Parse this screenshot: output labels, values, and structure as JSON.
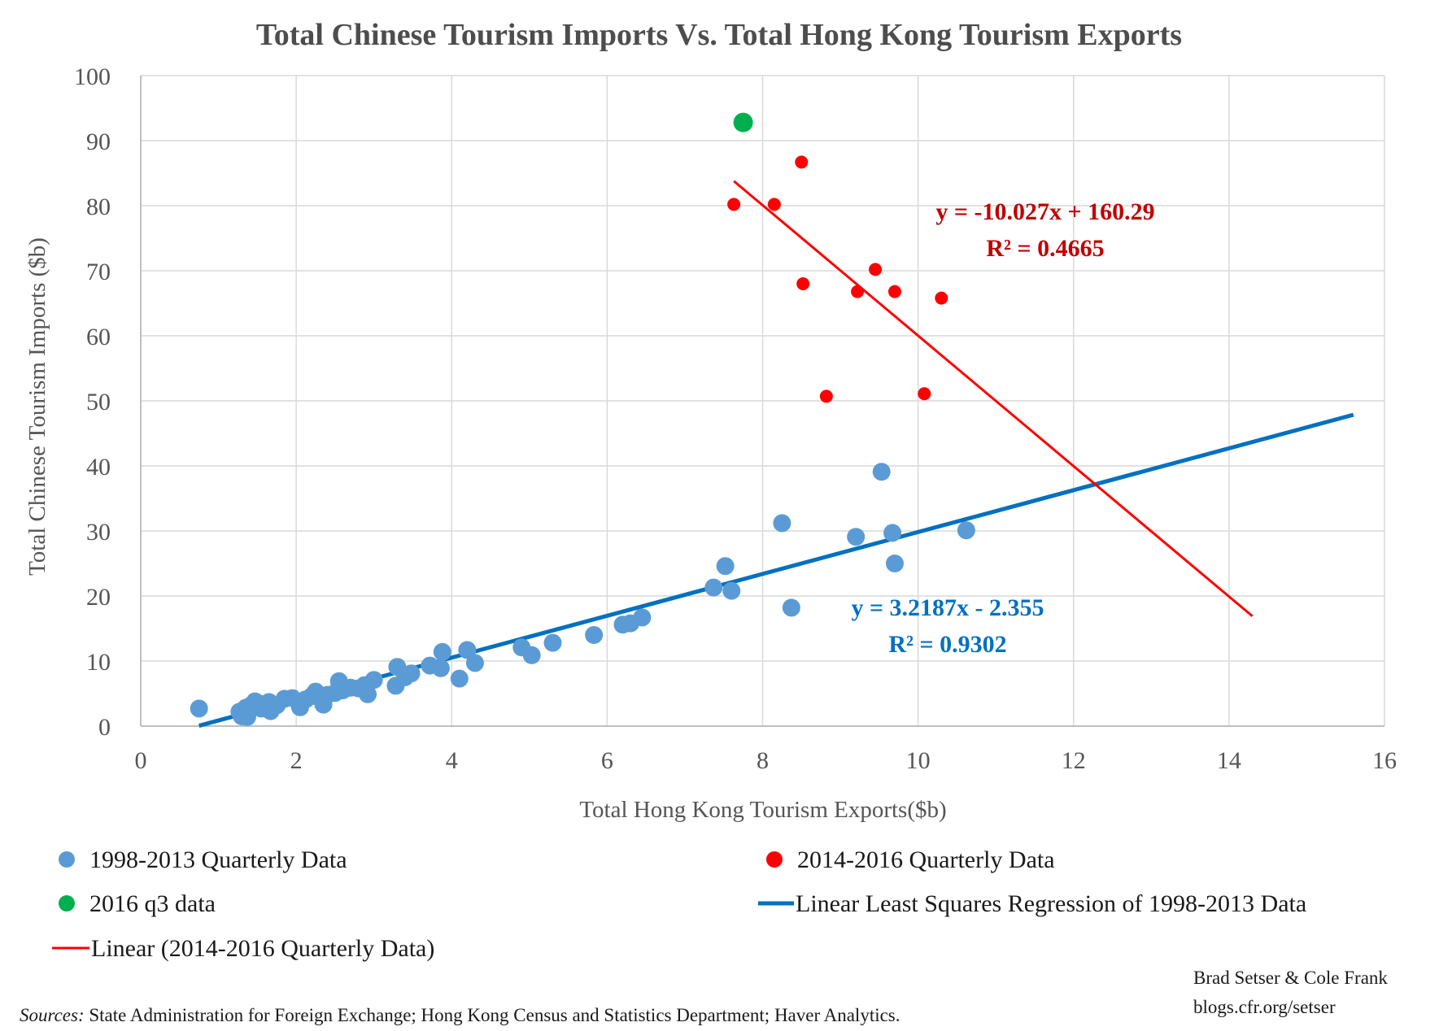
{
  "chart_data": {
    "type": "scatter",
    "title": "Total Chinese Tourism Imports Vs. Total Hong Kong Tourism Exports",
    "xlabel": "Total Hong Kong Tourism Exports($b)",
    "ylabel": "Total Chinese Tourism Imports ($b)",
    "xlim": [
      0,
      16
    ],
    "ylim": [
      0,
      100
    ],
    "xticks": [
      0,
      2,
      4,
      6,
      8,
      10,
      12,
      14,
      16
    ],
    "yticks": [
      0,
      10,
      20,
      30,
      40,
      50,
      60,
      70,
      80,
      90,
      100
    ],
    "grid": true,
    "legend_position": "bottom",
    "series": [
      {
        "name": "1998-2013 Quarterly Data",
        "color": "#5b9bd5",
        "points": [
          [
            0.75,
            2.7
          ],
          [
            1.27,
            2.2
          ],
          [
            1.3,
            1.5
          ],
          [
            1.35,
            2.8
          ],
          [
            1.37,
            1.4
          ],
          [
            1.42,
            3.2
          ],
          [
            1.47,
            3.8
          ],
          [
            1.52,
            3.5
          ],
          [
            1.55,
            2.7
          ],
          [
            1.6,
            3.1
          ],
          [
            1.65,
            3.7
          ],
          [
            1.67,
            2.3
          ],
          [
            1.75,
            3.2
          ],
          [
            1.85,
            4.2
          ],
          [
            1.95,
            4.3
          ],
          [
            2.05,
            2.9
          ],
          [
            2.12,
            4.1
          ],
          [
            2.2,
            4.6
          ],
          [
            2.25,
            5.3
          ],
          [
            2.35,
            3.3
          ],
          [
            2.4,
            4.8
          ],
          [
            2.5,
            5.1
          ],
          [
            2.55,
            6.9
          ],
          [
            2.6,
            5.5
          ],
          [
            2.7,
            5.9
          ],
          [
            2.8,
            5.8
          ],
          [
            2.88,
            6.3
          ],
          [
            2.92,
            4.9
          ],
          [
            3.0,
            7.1
          ],
          [
            3.28,
            6.2
          ],
          [
            3.3,
            9.1
          ],
          [
            3.4,
            7.5
          ],
          [
            3.48,
            8.1
          ],
          [
            3.72,
            9.3
          ],
          [
            3.86,
            8.9
          ],
          [
            3.88,
            11.4
          ],
          [
            4.1,
            7.3
          ],
          [
            4.2,
            11.7
          ],
          [
            4.3,
            9.7
          ],
          [
            4.9,
            12.1
          ],
          [
            5.03,
            10.9
          ],
          [
            5.3,
            12.8
          ],
          [
            5.83,
            14.0
          ],
          [
            6.2,
            15.6
          ],
          [
            6.3,
            15.8
          ],
          [
            6.45,
            16.7
          ],
          [
            7.37,
            21.3
          ],
          [
            7.52,
            24.6
          ],
          [
            7.6,
            20.8
          ],
          [
            8.25,
            31.2
          ],
          [
            8.37,
            18.2
          ],
          [
            9.2,
            29.1
          ],
          [
            9.53,
            39.1
          ],
          [
            9.67,
            29.7
          ],
          [
            9.7,
            25.0
          ],
          [
            10.62,
            30.1
          ]
        ]
      },
      {
        "name": "2014-2016 Quarterly Data",
        "color": "#ff0000",
        "points": [
          [
            7.63,
            80.2
          ],
          [
            8.15,
            80.2
          ],
          [
            8.5,
            86.7
          ],
          [
            8.52,
            68.0
          ],
          [
            8.82,
            50.7
          ],
          [
            9.22,
            66.8
          ],
          [
            9.45,
            70.2
          ],
          [
            9.7,
            66.8
          ],
          [
            10.08,
            51.1
          ],
          [
            10.3,
            65.8
          ]
        ]
      },
      {
        "name": "2016 q3 data",
        "color": "#00b050",
        "points": [
          [
            7.75,
            92.8
          ]
        ]
      }
    ],
    "trendlines": [
      {
        "name": "Linear Least Squares Regression of 1998-2013 Data",
        "color": "#0070c0",
        "slope": 3.2187,
        "intercept": -2.355,
        "x_range": [
          0.75,
          15.6
        ],
        "equation": "y = 3.2187x - 2.355",
        "r_squared": "R² = 0.9302"
      },
      {
        "name": "Linear (2014-2016 Quarterly Data)",
        "color": "#ff0000",
        "slope": -10.027,
        "intercept": 160.29,
        "x_range": [
          7.63,
          14.3
        ],
        "equation": "y = -10.027x + 160.29",
        "r_squared": "R² = 0.4665"
      }
    ]
  },
  "credit": {
    "line1": "Brad Setser & Cole Frank",
    "line2": "blogs.cfr.org/setser"
  },
  "sources": {
    "label": "Sources:",
    "text": " State Administration for Foreign Exchange; Hong Kong Census and Statistics Department;  Haver Analytics."
  }
}
